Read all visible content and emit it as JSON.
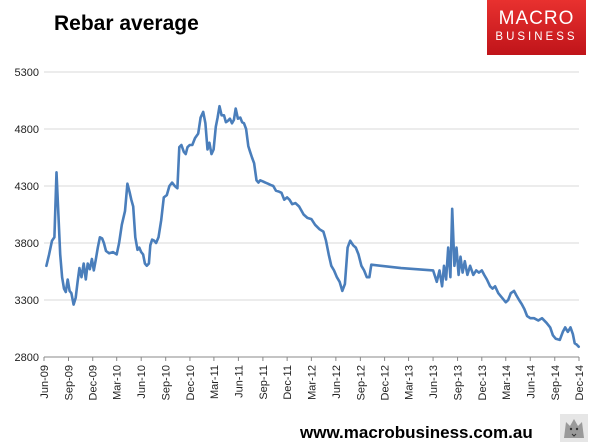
{
  "header": {
    "title": "Rebar average"
  },
  "logo": {
    "line1": "MACRO",
    "line2": "BUSINESS",
    "color": "#d42127",
    "icon": "macrobusiness-logo"
  },
  "footer": {
    "url": "www.macrobusiness.com.au",
    "icon": "wolf-icon"
  },
  "colors": {
    "line": "#4a7ebb",
    "grid": "#d9d9d9"
  },
  "chart_data": {
    "type": "line",
    "title": "Rebar average",
    "xlabel": "",
    "ylabel": "",
    "ylim": [
      2800,
      5300
    ],
    "yticks": [
      2800,
      3300,
      3800,
      4300,
      4800,
      5300
    ],
    "xlim": [
      "2009-06",
      "2014-12"
    ],
    "xticks": [
      "Jun-09",
      "Sep-09",
      "Dec-09",
      "Mar-10",
      "Jun-10",
      "Sep-10",
      "Dec-10",
      "Mar-11",
      "Jun-11",
      "Sep-11",
      "Dec-11",
      "Mar-12",
      "Jun-12",
      "Sep-12",
      "Dec-12",
      "Mar-13",
      "Jun-13",
      "Sep-13",
      "Dec-13",
      "Mar-14",
      "Jun-14",
      "Sep-14",
      "Dec-14"
    ],
    "grid": "horizontal",
    "legend": "none",
    "series": [
      {
        "points": [
          [
            "2009-06-10",
            3600
          ],
          [
            "2009-06-20",
            3700
          ],
          [
            "2009-07-01",
            3820
          ],
          [
            "2009-07-10",
            3850
          ],
          [
            "2009-07-18",
            4420
          ],
          [
            "2009-07-25",
            4050
          ],
          [
            "2009-08-01",
            3700
          ],
          [
            "2009-08-08",
            3500
          ],
          [
            "2009-08-15",
            3400
          ],
          [
            "2009-08-22",
            3370
          ],
          [
            "2009-08-29",
            3480
          ],
          [
            "2009-09-05",
            3380
          ],
          [
            "2009-09-12",
            3360
          ],
          [
            "2009-09-20",
            3260
          ],
          [
            "2009-09-28",
            3320
          ],
          [
            "2009-10-05",
            3460
          ],
          [
            "2009-10-12",
            3580
          ],
          [
            "2009-10-20",
            3500
          ],
          [
            "2009-10-28",
            3620
          ],
          [
            "2009-11-05",
            3480
          ],
          [
            "2009-11-12",
            3620
          ],
          [
            "2009-11-20",
            3570
          ],
          [
            "2009-11-28",
            3660
          ],
          [
            "2009-12-05",
            3560
          ],
          [
            "2009-12-12",
            3650
          ],
          [
            "2009-12-20",
            3760
          ],
          [
            "2009-12-28",
            3850
          ],
          [
            "2010-01-05",
            3840
          ],
          [
            "2010-01-12",
            3800
          ],
          [
            "2010-01-20",
            3730
          ],
          [
            "2010-02-01",
            3710
          ],
          [
            "2010-02-15",
            3720
          ],
          [
            "2010-03-01",
            3700
          ],
          [
            "2010-03-10",
            3800
          ],
          [
            "2010-03-20",
            3960
          ],
          [
            "2010-04-01",
            4080
          ],
          [
            "2010-04-10",
            4320
          ],
          [
            "2010-04-18",
            4250
          ],
          [
            "2010-04-25",
            4180
          ],
          [
            "2010-05-02",
            4120
          ],
          [
            "2010-05-10",
            3850
          ],
          [
            "2010-05-18",
            3740
          ],
          [
            "2010-05-25",
            3760
          ],
          [
            "2010-06-01",
            3720
          ],
          [
            "2010-06-08",
            3700
          ],
          [
            "2010-06-15",
            3620
          ],
          [
            "2010-06-22",
            3600
          ],
          [
            "2010-06-30",
            3620
          ],
          [
            "2010-07-05",
            3780
          ],
          [
            "2010-07-12",
            3830
          ],
          [
            "2010-07-20",
            3820
          ],
          [
            "2010-07-27",
            3800
          ],
          [
            "2010-08-05",
            3850
          ],
          [
            "2010-08-15",
            4000
          ],
          [
            "2010-08-25",
            4200
          ],
          [
            "2010-09-05",
            4220
          ],
          [
            "2010-09-15",
            4300
          ],
          [
            "2010-09-25",
            4330
          ],
          [
            "2010-10-05",
            4300
          ],
          [
            "2010-10-15",
            4280
          ],
          [
            "2010-10-22",
            4640
          ],
          [
            "2010-10-30",
            4660
          ],
          [
            "2010-11-08",
            4600
          ],
          [
            "2010-11-15",
            4580
          ],
          [
            "2010-11-22",
            4640
          ],
          [
            "2010-11-30",
            4660
          ],
          [
            "2010-12-10",
            4660
          ],
          [
            "2010-12-20",
            4720
          ],
          [
            "2011-01-01",
            4760
          ],
          [
            "2011-01-10",
            4900
          ],
          [
            "2011-01-20",
            4950
          ],
          [
            "2011-01-28",
            4850
          ],
          [
            "2011-02-05",
            4620
          ],
          [
            "2011-02-12",
            4680
          ],
          [
            "2011-02-20",
            4580
          ],
          [
            "2011-02-28",
            4620
          ],
          [
            "2011-03-08",
            4820
          ],
          [
            "2011-03-15",
            4900
          ],
          [
            "2011-03-22",
            5000
          ],
          [
            "2011-03-30",
            4920
          ],
          [
            "2011-04-08",
            4920
          ],
          [
            "2011-04-15",
            4860
          ],
          [
            "2011-04-22",
            4870
          ],
          [
            "2011-04-30",
            4890
          ],
          [
            "2011-05-08",
            4850
          ],
          [
            "2011-05-15",
            4880
          ],
          [
            "2011-05-22",
            4980
          ],
          [
            "2011-05-30",
            4890
          ],
          [
            "2011-06-08",
            4900
          ],
          [
            "2011-06-15",
            4860
          ],
          [
            "2011-06-22",
            4850
          ],
          [
            "2011-06-30",
            4800
          ],
          [
            "2011-07-08",
            4650
          ],
          [
            "2011-07-15",
            4600
          ],
          [
            "2011-07-22",
            4550
          ],
          [
            "2011-07-30",
            4500
          ],
          [
            "2011-08-08",
            4350
          ],
          [
            "2011-08-15",
            4330
          ],
          [
            "2011-08-22",
            4350
          ],
          [
            "2011-09-01",
            4340
          ],
          [
            "2011-09-10",
            4330
          ],
          [
            "2011-09-20",
            4320
          ],
          [
            "2011-09-30",
            4310
          ],
          [
            "2011-10-10",
            4300
          ],
          [
            "2011-10-20",
            4260
          ],
          [
            "2011-11-01",
            4250
          ],
          [
            "2011-11-10",
            4240
          ],
          [
            "2011-11-20",
            4180
          ],
          [
            "2011-12-01",
            4200
          ],
          [
            "2011-12-10",
            4180
          ],
          [
            "2011-12-20",
            4140
          ],
          [
            "2012-01-01",
            4150
          ],
          [
            "2012-01-15",
            4120
          ],
          [
            "2012-02-01",
            4050
          ],
          [
            "2012-02-15",
            4020
          ],
          [
            "2012-03-01",
            4010
          ],
          [
            "2012-03-15",
            3960
          ],
          [
            "2012-04-01",
            3920
          ],
          [
            "2012-04-15",
            3900
          ],
          [
            "2012-04-25",
            3820
          ],
          [
            "2012-05-05",
            3700
          ],
          [
            "2012-05-15",
            3600
          ],
          [
            "2012-05-25",
            3560
          ],
          [
            "2012-06-05",
            3500
          ],
          [
            "2012-06-15",
            3460
          ],
          [
            "2012-06-25",
            3380
          ],
          [
            "2012-07-05",
            3440
          ],
          [
            "2012-07-15",
            3760
          ],
          [
            "2012-07-25",
            3820
          ],
          [
            "2012-08-05",
            3780
          ],
          [
            "2012-08-15",
            3760
          ],
          [
            "2012-08-25",
            3700
          ],
          [
            "2012-09-05",
            3600
          ],
          [
            "2012-09-15",
            3560
          ],
          [
            "2012-09-25",
            3500
          ],
          [
            "2012-10-05",
            3500
          ],
          [
            "2012-10-12",
            3610
          ],
          [
            "2013-02-01",
            3580
          ],
          [
            "2013-06-01",
            3560
          ],
          [
            "2013-06-15",
            3460
          ],
          [
            "2013-06-25",
            3560
          ],
          [
            "2013-07-05",
            3420
          ],
          [
            "2013-07-12",
            3600
          ],
          [
            "2013-07-20",
            3480
          ],
          [
            "2013-07-28",
            3760
          ],
          [
            "2013-08-05",
            3500
          ],
          [
            "2013-08-12",
            4100
          ],
          [
            "2013-08-20",
            3600
          ],
          [
            "2013-08-28",
            3760
          ],
          [
            "2013-09-05",
            3520
          ],
          [
            "2013-09-12",
            3680
          ],
          [
            "2013-09-20",
            3540
          ],
          [
            "2013-09-28",
            3640
          ],
          [
            "2013-10-08",
            3520
          ],
          [
            "2013-10-18",
            3600
          ],
          [
            "2013-10-30",
            3520
          ],
          [
            "2013-11-10",
            3560
          ],
          [
            "2013-11-20",
            3540
          ],
          [
            "2013-12-01",
            3560
          ],
          [
            "2013-12-10",
            3520
          ],
          [
            "2013-12-20",
            3480
          ],
          [
            "2014-01-01",
            3420
          ],
          [
            "2014-01-10",
            3400
          ],
          [
            "2014-01-20",
            3420
          ],
          [
            "2014-02-01",
            3360
          ],
          [
            "2014-02-15",
            3320
          ],
          [
            "2014-03-01",
            3280
          ],
          [
            "2014-03-10",
            3300
          ],
          [
            "2014-03-20",
            3360
          ],
          [
            "2014-04-01",
            3380
          ],
          [
            "2014-04-10",
            3340
          ],
          [
            "2014-04-20",
            3300
          ],
          [
            "2014-05-01",
            3260
          ],
          [
            "2014-05-10",
            3220
          ],
          [
            "2014-05-20",
            3160
          ],
          [
            "2014-06-01",
            3140
          ],
          [
            "2014-06-15",
            3140
          ],
          [
            "2014-07-01",
            3120
          ],
          [
            "2014-07-15",
            3140
          ],
          [
            "2014-08-01",
            3100
          ],
          [
            "2014-08-15",
            3060
          ],
          [
            "2014-08-25",
            2990
          ],
          [
            "2014-09-05",
            2960
          ],
          [
            "2014-09-20",
            2950
          ],
          [
            "2014-10-01",
            3020
          ],
          [
            "2014-10-10",
            3060
          ],
          [
            "2014-10-20",
            3020
          ],
          [
            "2014-10-30",
            3060
          ],
          [
            "2014-11-08",
            3000
          ],
          [
            "2014-11-15",
            2920
          ],
          [
            "2014-11-22",
            2910
          ],
          [
            "2014-11-30",
            2890
          ]
        ]
      }
    ]
  }
}
